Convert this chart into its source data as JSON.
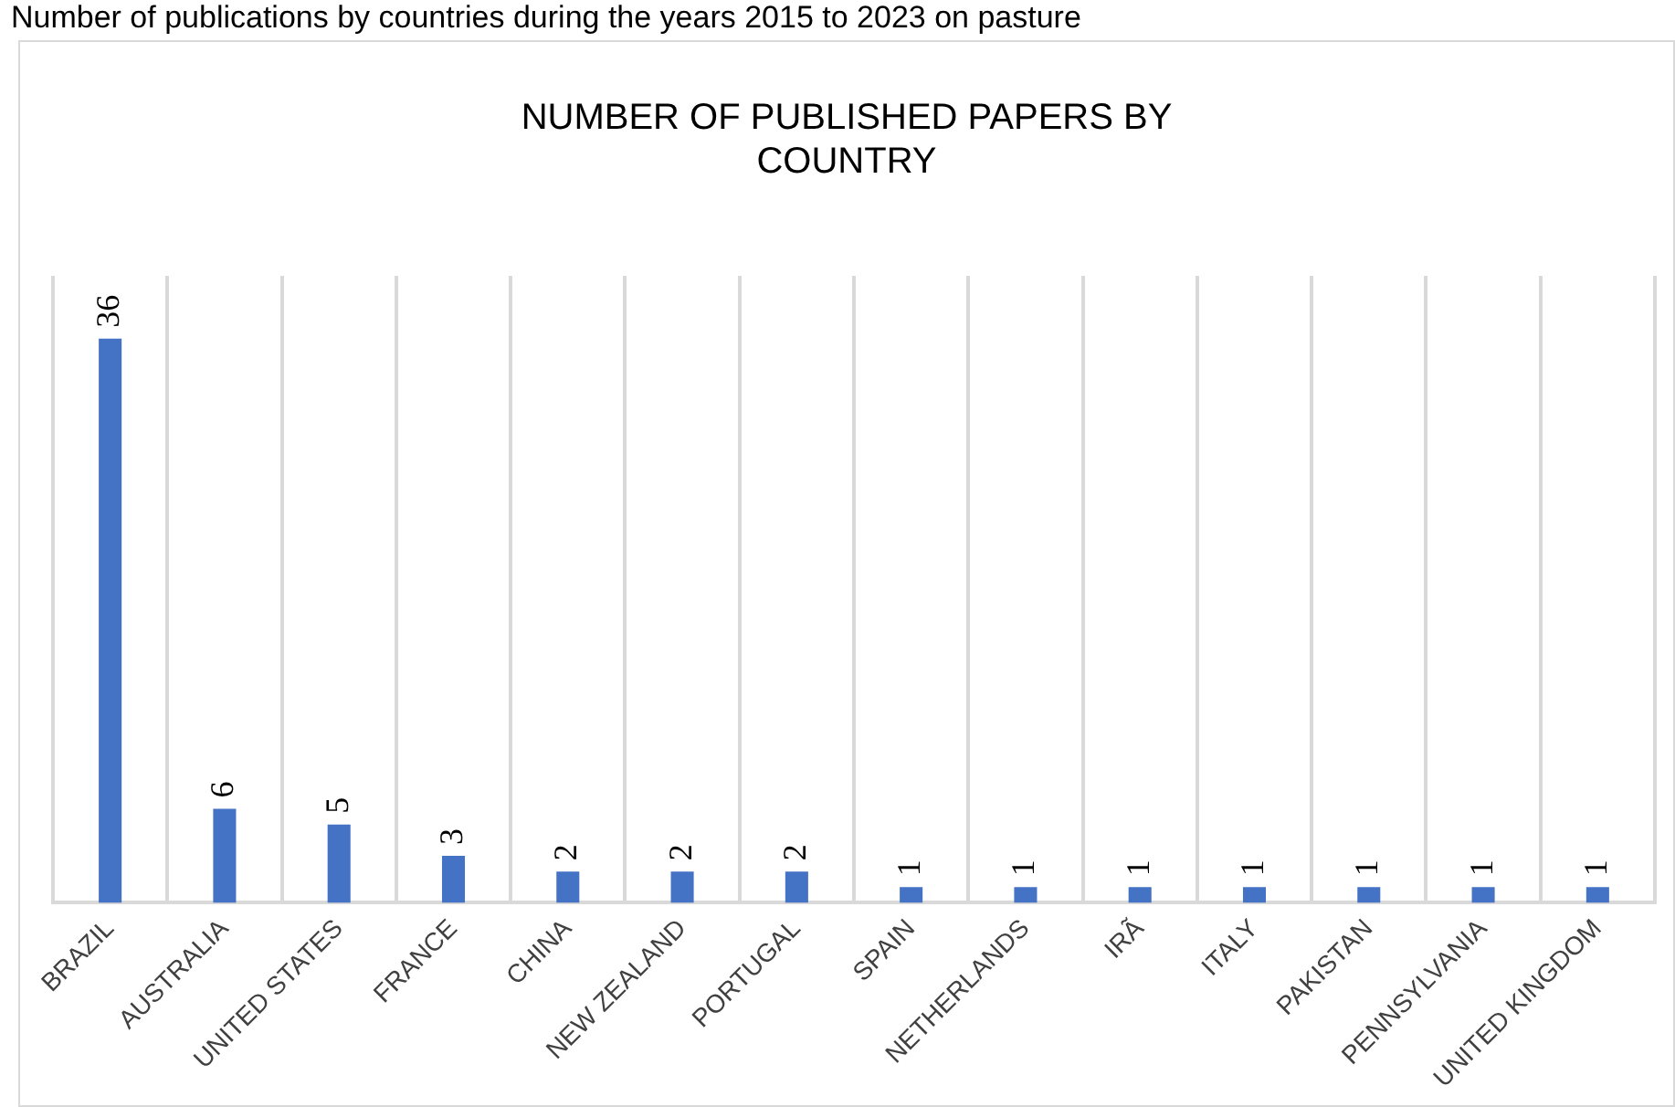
{
  "chart_data": {
    "type": "bar",
    "title": "NUMBER OF PUBLISHED PAPERS BY COUNTRY",
    "annotations": [
      "Number of publications by countries during the years 2015 to 2023 on pasture"
    ],
    "categories": [
      "BRAZIL",
      "AUSTRALIA",
      "UNITED STATES",
      "FRANCE",
      "CHINA",
      "NEW ZEALAND",
      "PORTUGAL",
      "SPAIN",
      "NETHERLANDS",
      "IRÃ",
      "ITALY",
      "PAKISTAN",
      "PENNSYLVANIA",
      "UNITED KINGDOM"
    ],
    "values": [
      36,
      6,
      5,
      3,
      2,
      2,
      2,
      1,
      1,
      1,
      1,
      1,
      1,
      1
    ],
    "color": "#4472c4",
    "ylim": [
      0,
      40
    ],
    "grid": "x",
    "tick_labels": "x",
    "data_labels": true,
    "legend": false
  }
}
